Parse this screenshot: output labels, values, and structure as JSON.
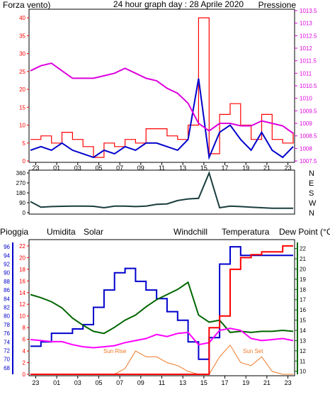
{
  "header": {
    "left_label": "Forza vento)",
    "title": "24 hour graph day : 28 Aprile 2020",
    "right_label": "Pressione"
  },
  "colors": {
    "wind": "#ff0000",
    "wind_avg": "#0000cc",
    "pressure": "#dd00dd",
    "direction": "#1a3d3d",
    "rain": "#ff0000",
    "humidity": "#0000cc",
    "solar": "#ee7722",
    "windchill": "#009900",
    "temperature": "#006600",
    "dewpoint": "#ff00ff",
    "left_axis_pink": "#ff0080"
  },
  "x_ticks": [
    "23",
    "01",
    "03",
    "05",
    "07",
    "09",
    "11",
    "13",
    "15",
    "17",
    "19",
    "21",
    "23"
  ],
  "chart_data": [
    {
      "type": "line",
      "panel": "wind-pressure",
      "y_left": {
        "ticks": [
          0,
          5,
          10,
          15,
          20,
          25,
          30,
          35,
          40
        ],
        "ylim": [
          0,
          42
        ]
      },
      "y_right": {
        "ticks": [
          "1007.5",
          "1008",
          "1008.5",
          "1009",
          "1009.5",
          "1010",
          "1010.5",
          "1011",
          "1011.5",
          "1012",
          "1012.5",
          "1013",
          "1013.5"
        ],
        "ylim": [
          1007.5,
          1013.5
        ]
      },
      "x": [
        22,
        23,
        24,
        25,
        26,
        27,
        28,
        29,
        30,
        31,
        32,
        33,
        34,
        35,
        36,
        37,
        38,
        39,
        40,
        41,
        42,
        43,
        44,
        45,
        46,
        47
      ],
      "series": [
        {
          "name": "Forza vento)",
          "axis": "left",
          "values": [
            6,
            7,
            5,
            8,
            6,
            4,
            1,
            5,
            4,
            6,
            5,
            9,
            9,
            7,
            6,
            10,
            40,
            2,
            13,
            16,
            10,
            6,
            13,
            6,
            5,
            8
          ]
        },
        {
          "name": "",
          "axis": "left",
          "values": [
            3,
            4,
            3,
            5,
            3,
            2,
            1,
            3,
            2,
            4,
            3,
            5,
            5,
            4,
            3,
            6,
            23,
            1,
            8,
            10,
            6,
            3,
            8,
            3,
            1,
            4
          ]
        },
        {
          "name": "Pressione",
          "axis": "right",
          "values": [
            1011.1,
            1011.3,
            1011.4,
            1011.1,
            1010.8,
            1010.8,
            1010.8,
            1010.9,
            1011.0,
            1011.2,
            1011.0,
            1010.8,
            1010.7,
            1010.4,
            1010.2,
            1009.8,
            1009.0,
            1008.7,
            1009.0,
            1009.0,
            1008.9,
            1008.9,
            1009.1,
            1009.0,
            1008.9,
            1008.6
          ]
        }
      ]
    },
    {
      "type": "line",
      "panel": "wind-direction",
      "y_left": {
        "ticks": [
          0,
          90,
          180,
          270,
          360
        ],
        "ylim": [
          0,
          360
        ]
      },
      "directions": [
        "N",
        "W",
        "S",
        "E",
        "N"
      ],
      "x": [
        22,
        23,
        24,
        25,
        26,
        27,
        28,
        29,
        30,
        31,
        32,
        33,
        34,
        35,
        36,
        37,
        38,
        39,
        40,
        41,
        42,
        43,
        44,
        45,
        46,
        47
      ],
      "values": [
        100,
        50,
        55,
        58,
        60,
        60,
        58,
        45,
        60,
        60,
        55,
        60,
        75,
        80,
        110,
        125,
        130,
        360,
        45,
        60,
        55,
        50,
        45,
        40,
        40,
        40
      ]
    },
    {
      "type": "line",
      "panel": "weather",
      "legend": [
        "Pioggia",
        "Umidita",
        "Solar",
        "Windchill",
        "Temperatura",
        "Dew Point (°C)"
      ],
      "y_left_rain": {
        "ticks": [
          0,
          2,
          4,
          6,
          8,
          10,
          12,
          14,
          16,
          18,
          20,
          22
        ],
        "ylim": [
          0,
          22.6
        ]
      },
      "y_left_humidity": {
        "ticks": [
          68,
          70,
          72,
          74,
          76,
          78,
          80,
          82,
          84,
          86,
          88,
          90,
          92,
          94,
          96
        ],
        "ylim": [
          66.5,
          97
        ]
      },
      "y_right": {
        "ticks": [
          10,
          11,
          12,
          13,
          14,
          15,
          16,
          17,
          18,
          19,
          20,
          21,
          22
        ],
        "ylim": [
          9.7,
          22.6
        ]
      },
      "annotations": [
        "Sun Rise",
        "Sun Set"
      ],
      "x": [
        22,
        23,
        24,
        25,
        26,
        27,
        28,
        29,
        30,
        31,
        32,
        33,
        34,
        35,
        36,
        37,
        38,
        39,
        40,
        41,
        42,
        43,
        44,
        45,
        46,
        47
      ],
      "series": [
        {
          "name": "Pioggia",
          "axis": "rain",
          "values": [
            0,
            0,
            0,
            0,
            0,
            0,
            0,
            0,
            0,
            0,
            0,
            0,
            0,
            0,
            0,
            0,
            0,
            8,
            10,
            18,
            20,
            20.5,
            21,
            21,
            22,
            22
          ]
        },
        {
          "name": "Umidita",
          "axis": "humidity",
          "values": [
            73,
            74,
            76,
            76,
            77,
            78,
            82,
            86,
            90,
            91,
            88,
            86,
            84,
            81,
            79,
            74,
            70,
            75,
            92,
            96,
            94,
            94,
            94,
            94,
            94,
            94
          ]
        },
        {
          "name": "Solar",
          "axis": "rain",
          "values": [
            0,
            0,
            0,
            0,
            0,
            0,
            0,
            0,
            0,
            1,
            4,
            3,
            3,
            2,
            1.5,
            0.5,
            0,
            0,
            3,
            5,
            2,
            1.5,
            3,
            0.5,
            0,
            0
          ]
        },
        {
          "name": "Windchill",
          "axis": "right",
          "values": [
            17.5,
            17.2,
            16.8,
            16.2,
            15.2,
            14.5,
            13.9,
            13.7,
            14.3,
            15.0,
            15.5,
            16.3,
            17.0,
            17.5,
            18.0,
            18.7,
            15.5,
            14.8,
            15.0,
            13.8,
            13.9,
            13.8,
            13.9,
            13.9,
            14.0,
            13.9
          ]
        },
        {
          "name": "Temperatura",
          "axis": "right",
          "values": [
            17.5,
            17.2,
            16.8,
            16.2,
            15.2,
            14.5,
            13.9,
            13.7,
            14.3,
            15.0,
            15.5,
            16.3,
            17.0,
            17.5,
            18.0,
            18.7,
            15.5,
            14.8,
            15.0,
            13.8,
            13.9,
            13.8,
            13.9,
            13.9,
            14.0,
            13.9
          ]
        },
        {
          "name": "Dew Point (°C)",
          "axis": "right",
          "values": [
            13.1,
            13.0,
            12.9,
            12.9,
            12.6,
            12.4,
            12.3,
            12.4,
            12.5,
            12.8,
            13.0,
            13.2,
            13.6,
            13.4,
            13.7,
            13.8,
            12.6,
            12.8,
            14.0,
            14.2,
            14.0,
            13.2,
            13.0,
            13.1,
            13.2,
            13.0
          ]
        }
      ]
    }
  ]
}
